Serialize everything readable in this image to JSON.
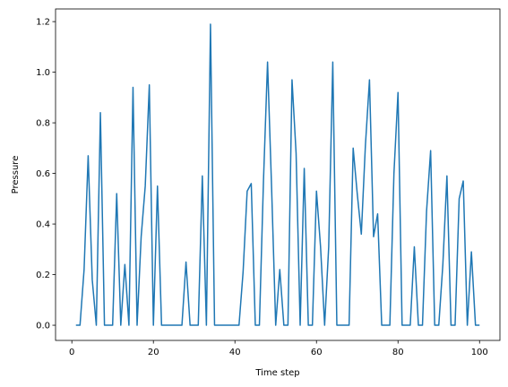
{
  "chart_data": {
    "type": "line",
    "xlabel": "Time step",
    "ylabel": "Pressure",
    "xlim": [
      -4,
      105
    ],
    "ylim": [
      -0.06,
      1.25
    ],
    "xticks": [
      0,
      20,
      40,
      60,
      80,
      100
    ],
    "yticks": [
      0.0,
      0.2,
      0.4,
      0.6,
      0.8,
      1.0,
      1.2
    ],
    "xtick_labels": [
      "0",
      "20",
      "40",
      "60",
      "80",
      "100"
    ],
    "ytick_labels": [
      "0.0",
      "0.2",
      "0.4",
      "0.6",
      "0.8",
      "1.0",
      "1.2"
    ],
    "grid": false,
    "line_color": "#1f77b4",
    "series": [
      {
        "x": [
          1,
          2,
          3,
          4,
          5,
          6,
          7,
          8,
          9,
          10,
          11,
          12,
          13,
          14,
          15,
          16,
          17,
          18,
          19,
          20,
          21,
          22,
          23,
          24,
          25,
          26,
          27,
          28,
          29,
          30,
          31,
          32,
          33,
          34,
          35,
          36,
          37,
          38,
          39,
          40,
          41,
          42,
          43,
          44,
          45,
          46,
          47,
          48,
          49,
          50,
          51,
          52,
          53,
          54,
          55,
          56,
          57,
          58,
          59,
          60,
          61,
          62,
          63,
          64,
          65,
          66,
          67,
          68,
          69,
          70,
          71,
          72,
          73,
          74,
          75,
          76,
          77,
          78,
          79,
          80,
          81,
          82,
          83,
          84,
          85,
          86,
          87,
          88,
          89,
          90,
          91,
          92,
          93,
          94,
          95,
          96,
          97,
          98,
          99,
          100
        ],
        "values": [
          0.0,
          0.0,
          0.22,
          0.67,
          0.18,
          0.0,
          0.84,
          0.0,
          0.0,
          0.0,
          0.52,
          0.0,
          0.24,
          0.0,
          0.94,
          0.0,
          0.35,
          0.55,
          0.95,
          0.0,
          0.55,
          0.0,
          0.0,
          0.0,
          0.0,
          0.0,
          0.0,
          0.25,
          0.0,
          0.0,
          0.0,
          0.59,
          0.0,
          1.19,
          0.0,
          0.0,
          0.0,
          0.0,
          0.0,
          0.0,
          0.0,
          0.21,
          0.53,
          0.56,
          0.0,
          0.0,
          0.57,
          1.04,
          0.54,
          0.0,
          0.22,
          0.0,
          0.0,
          0.97,
          0.68,
          0.0,
          0.62,
          0.0,
          0.0,
          0.53,
          0.31,
          0.0,
          0.31,
          1.04,
          0.0,
          0.0,
          0.0,
          0.0,
          0.7,
          0.52,
          0.36,
          0.71,
          0.97,
          0.35,
          0.44,
          0.0,
          0.0,
          0.0,
          0.6,
          0.92,
          0.0,
          0.0,
          0.0,
          0.31,
          0.0,
          0.0,
          0.45,
          0.69,
          0.0,
          0.0,
          0.24,
          0.59,
          0.0,
          0.0,
          0.5,
          0.57,
          0.0,
          0.29,
          0.0,
          0.0
        ]
      }
    ]
  }
}
